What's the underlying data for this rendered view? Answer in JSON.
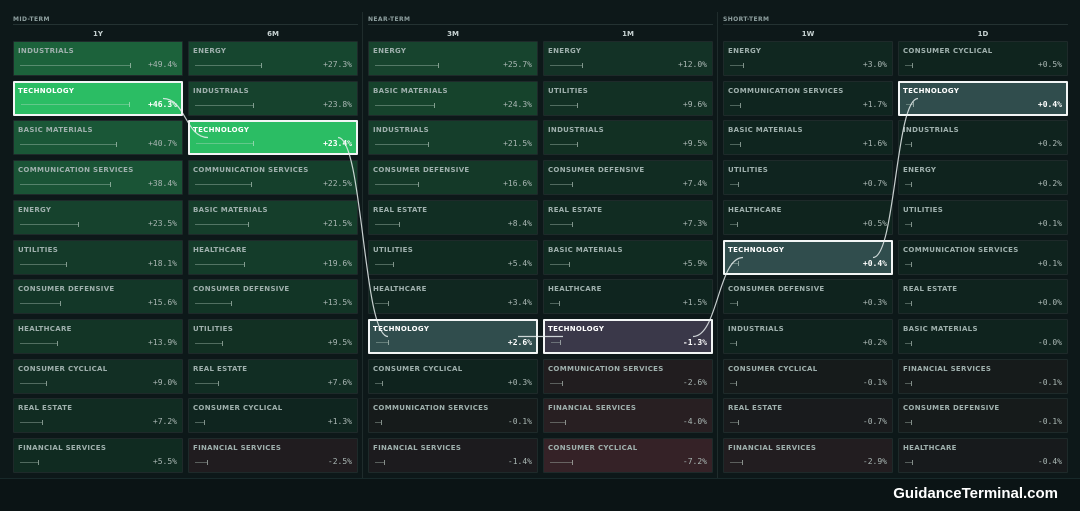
{
  "sections": [
    {
      "label": "MID-TERM"
    },
    {
      "label": "NEAR-TERM"
    },
    {
      "label": "SHORT-TERM"
    }
  ],
  "brand": "GuidanceTerminal.com",
  "highlight_sector": "TECHNOLOGY",
  "colors": {
    "highlight_border": "#f2f5f5",
    "strong_green": "#2bbd64",
    "page_bg": "#0d1819"
  },
  "columns": [
    {
      "header": "1Y",
      "rows": [
        {
          "sector": "INDUSTRIALS",
          "change": "+49.4%",
          "pct": 49.4
        },
        {
          "sector": "TECHNOLOGY",
          "change": "+46.3%",
          "pct": 46.3
        },
        {
          "sector": "BASIC MATERIALS",
          "change": "+40.7%",
          "pct": 40.7
        },
        {
          "sector": "COMMUNICATION SERVICES",
          "change": "+38.4%",
          "pct": 38.4
        },
        {
          "sector": "ENERGY",
          "change": "+23.5%",
          "pct": 23.5
        },
        {
          "sector": "UTILITIES",
          "change": "+18.1%",
          "pct": 18.1
        },
        {
          "sector": "CONSUMER DEFENSIVE",
          "change": "+15.6%",
          "pct": 15.6
        },
        {
          "sector": "HEALTHCARE",
          "change": "+13.9%",
          "pct": 13.9
        },
        {
          "sector": "CONSUMER CYCLICAL",
          "change": "+9.0%",
          "pct": 9.0
        },
        {
          "sector": "REAL ESTATE",
          "change": "+7.2%",
          "pct": 7.2
        },
        {
          "sector": "FINANCIAL SERVICES",
          "change": "+5.5%",
          "pct": 5.5
        }
      ]
    },
    {
      "header": "6M",
      "rows": [
        {
          "sector": "ENERGY",
          "change": "+27.3%",
          "pct": 27.3
        },
        {
          "sector": "INDUSTRIALS",
          "change": "+23.8%",
          "pct": 23.8
        },
        {
          "sector": "TECHNOLOGY",
          "change": "+23.4%",
          "pct": 23.4
        },
        {
          "sector": "COMMUNICATION SERVICES",
          "change": "+22.5%",
          "pct": 22.5
        },
        {
          "sector": "BASIC MATERIALS",
          "change": "+21.5%",
          "pct": 21.5
        },
        {
          "sector": "HEALTHCARE",
          "change": "+19.6%",
          "pct": 19.6
        },
        {
          "sector": "CONSUMER DEFENSIVE",
          "change": "+13.5%",
          "pct": 13.5
        },
        {
          "sector": "UTILITIES",
          "change": "+9.5%",
          "pct": 9.5
        },
        {
          "sector": "REAL ESTATE",
          "change": "+7.6%",
          "pct": 7.6
        },
        {
          "sector": "CONSUMER CYCLICAL",
          "change": "+1.3%",
          "pct": 1.3
        },
        {
          "sector": "FINANCIAL SERVICES",
          "change": "-2.5%",
          "pct": -2.5
        }
      ]
    },
    {
      "header": "3M",
      "rows": [
        {
          "sector": "ENERGY",
          "change": "+25.7%",
          "pct": 25.7
        },
        {
          "sector": "BASIC MATERIALS",
          "change": "+24.3%",
          "pct": 24.3
        },
        {
          "sector": "INDUSTRIALS",
          "change": "+21.5%",
          "pct": 21.5
        },
        {
          "sector": "CONSUMER DEFENSIVE",
          "change": "+16.6%",
          "pct": 16.6
        },
        {
          "sector": "REAL ESTATE",
          "change": "+8.4%",
          "pct": 8.4
        },
        {
          "sector": "UTILITIES",
          "change": "+5.4%",
          "pct": 5.4
        },
        {
          "sector": "HEALTHCARE",
          "change": "+3.4%",
          "pct": 3.4
        },
        {
          "sector": "TECHNOLOGY",
          "change": "+2.6%",
          "pct": 2.6
        },
        {
          "sector": "CONSUMER CYCLICAL",
          "change": "+0.3%",
          "pct": 0.3
        },
        {
          "sector": "COMMUNICATION SERVICES",
          "change": "-0.1%",
          "pct": -0.1
        },
        {
          "sector": "FINANCIAL SERVICES",
          "change": "-1.4%",
          "pct": -1.4
        }
      ]
    },
    {
      "header": "1M",
      "rows": [
        {
          "sector": "ENERGY",
          "change": "+12.0%",
          "pct": 12.0
        },
        {
          "sector": "UTILITIES",
          "change": "+9.6%",
          "pct": 9.6
        },
        {
          "sector": "INDUSTRIALS",
          "change": "+9.5%",
          "pct": 9.5
        },
        {
          "sector": "CONSUMER DEFENSIVE",
          "change": "+7.4%",
          "pct": 7.4
        },
        {
          "sector": "REAL ESTATE",
          "change": "+7.3%",
          "pct": 7.3
        },
        {
          "sector": "BASIC MATERIALS",
          "change": "+5.9%",
          "pct": 5.9
        },
        {
          "sector": "HEALTHCARE",
          "change": "+1.5%",
          "pct": 1.5
        },
        {
          "sector": "TECHNOLOGY",
          "change": "-1.3%",
          "pct": -1.3
        },
        {
          "sector": "COMMUNICATION SERVICES",
          "change": "-2.6%",
          "pct": -2.6
        },
        {
          "sector": "FINANCIAL SERVICES",
          "change": "-4.0%",
          "pct": -4.0
        },
        {
          "sector": "CONSUMER CYCLICAL",
          "change": "-7.2%",
          "pct": -7.2
        }
      ]
    },
    {
      "header": "1W",
      "rows": [
        {
          "sector": "ENERGY",
          "change": "+3.0%",
          "pct": 3.0
        },
        {
          "sector": "COMMUNICATION SERVICES",
          "change": "+1.7%",
          "pct": 1.7
        },
        {
          "sector": "BASIC MATERIALS",
          "change": "+1.6%",
          "pct": 1.6
        },
        {
          "sector": "UTILITIES",
          "change": "+0.7%",
          "pct": 0.7
        },
        {
          "sector": "HEALTHCARE",
          "change": "+0.5%",
          "pct": 0.5
        },
        {
          "sector": "TECHNOLOGY",
          "change": "+0.4%",
          "pct": 0.4
        },
        {
          "sector": "CONSUMER DEFENSIVE",
          "change": "+0.3%",
          "pct": 0.3
        },
        {
          "sector": "INDUSTRIALS",
          "change": "+0.2%",
          "pct": 0.2
        },
        {
          "sector": "CONSUMER CYCLICAL",
          "change": "-0.1%",
          "pct": -0.1
        },
        {
          "sector": "REAL ESTATE",
          "change": "-0.7%",
          "pct": -0.7
        },
        {
          "sector": "FINANCIAL SERVICES",
          "change": "-2.9%",
          "pct": -2.9
        }
      ]
    },
    {
      "header": "1D",
      "rows": [
        {
          "sector": "CONSUMER CYCLICAL",
          "change": "+0.5%",
          "pct": 0.5
        },
        {
          "sector": "TECHNOLOGY",
          "change": "+0.4%",
          "pct": 0.4
        },
        {
          "sector": "INDUSTRIALS",
          "change": "+0.2%",
          "pct": 0.2
        },
        {
          "sector": "ENERGY",
          "change": "+0.2%",
          "pct": 0.2
        },
        {
          "sector": "UTILITIES",
          "change": "+0.1%",
          "pct": 0.1
        },
        {
          "sector": "COMMUNICATION SERVICES",
          "change": "+0.1%",
          "pct": 0.1
        },
        {
          "sector": "REAL ESTATE",
          "change": "+0.0%",
          "pct": 0.0
        },
        {
          "sector": "BASIC MATERIALS",
          "change": "-0.0%",
          "pct": -0.0
        },
        {
          "sector": "FINANCIAL SERVICES",
          "change": "-0.1%",
          "pct": -0.1
        },
        {
          "sector": "CONSUMER DEFENSIVE",
          "change": "-0.1%",
          "pct": -0.1
        },
        {
          "sector": "HEALTHCARE",
          "change": "-0.4%",
          "pct": -0.4
        }
      ]
    }
  ]
}
